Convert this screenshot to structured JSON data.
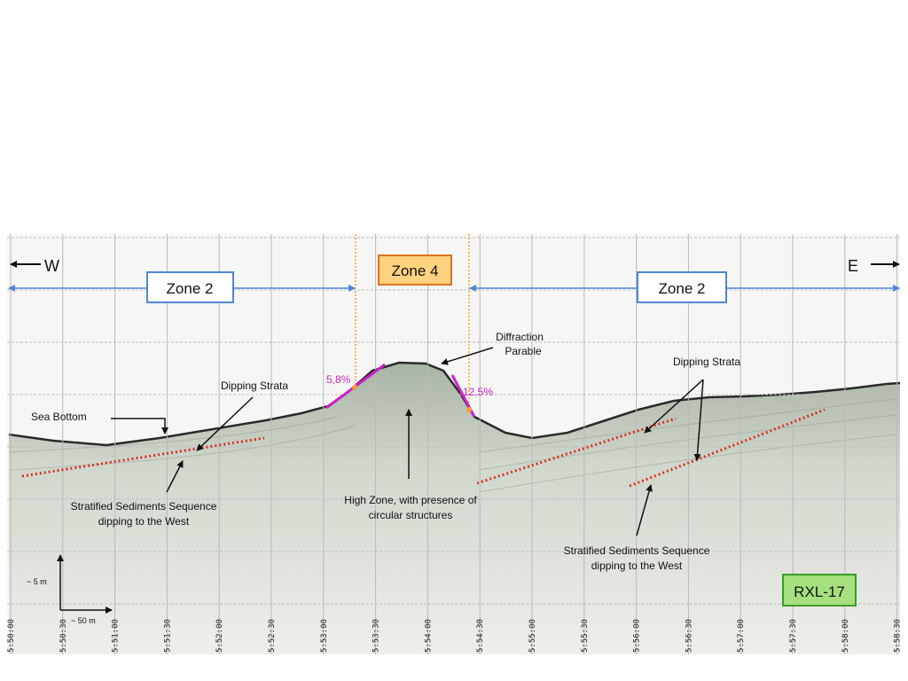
{
  "directions": {
    "west": "W",
    "east": "E"
  },
  "zones": {
    "west_zone": "Zone 2",
    "center_zone": "Zone 4",
    "east_zone": "Zone 2"
  },
  "annotations": {
    "diffraction": [
      "Diffraction",
      "Parable"
    ],
    "dipping_strata_west": "Dipping Strata",
    "dipping_strata_east": "Dipping Strata",
    "sea_bottom": "Sea Bottom",
    "stratified_west": [
      "Stratified Sediments Sequence",
      "dipping to the West"
    ],
    "stratified_east": [
      "Stratified Sediments Sequence",
      "dipping to the West"
    ],
    "high_zone": [
      "High Zone, with presence of",
      "circular structures"
    ]
  },
  "slopes": {
    "west_slope": "5,8%",
    "east_slope": "12,5%"
  },
  "scale": {
    "vertical": "~ 5 m",
    "horizontal": "~ 50 m"
  },
  "profile_id": "RXL-17",
  "time_ticks": [
    "5:50:00",
    "5:50:30",
    "5:51:00",
    "5:51:30",
    "5:52:00",
    "5:52:30",
    "5:53:00",
    "5:53:30",
    "5:54:00",
    "5:54:30",
    "5:55:00",
    "5:55:30",
    "5:56:00",
    "5:56:30",
    "5:57:00",
    "5:57:30",
    "5:58:00",
    "5:58:30"
  ],
  "colors": {
    "zone_box_border": "#4f86d8",
    "zone4_fill": "#ffd27f",
    "zone4_border": "#e07020",
    "slope_line": "#cc22cc",
    "strata_line": "#d83020",
    "zone_boundary": "#f0a030",
    "profile_box_fill": "#a6e07e",
    "profile_box_border": "#3a9a2a",
    "arrow_blue": "#4f86d8"
  }
}
